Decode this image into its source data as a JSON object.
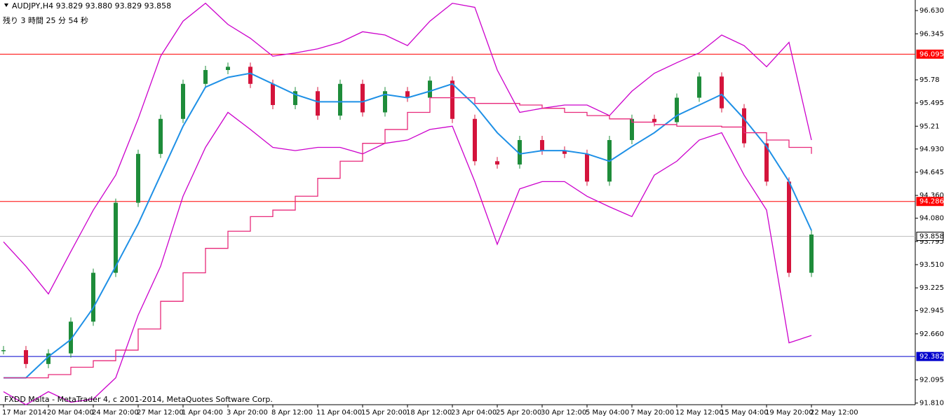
{
  "chart_data": {
    "type": "candlestick",
    "title": "AUDJPY,H4  93.829 93.880 93.829 93.858",
    "countdown": "残り 3 時間 25 分 54 秒",
    "copyright": "FXDD Malta - MetaTrader 4, c 2001-2014, MetaQuotes Software Corp.",
    "categories": [
      "17 Mar 2014",
      null,
      "20 Mar 04:00",
      null,
      "24 Mar 20:00",
      null,
      "27 Mar 12:00",
      null,
      "1 Apr 04:00",
      null,
      "3 Apr 20:00",
      null,
      "8 Apr 12:00",
      null,
      "11 Apr 04:00",
      null,
      "15 Apr 20:00",
      null,
      "18 Apr 12:00",
      null,
      "23 Apr 04:00",
      null,
      "25 Apr 20:00",
      null,
      "30 Apr 12:00",
      null,
      "5 May 04:00",
      null,
      "7 May 20:00",
      null,
      "12 May 12:00",
      null,
      "15 May 04:00",
      null,
      "19 May 20:00",
      null,
      "22 May 12:00"
    ],
    "up_color": "#1e8c3a",
    "down_color": "#d4143c",
    "series": [
      {
        "name": "price",
        "color": "#000000",
        "values": [
          92.46,
          92.29,
          92.42,
          92.81,
          93.41,
          94.27,
          94.87,
          95.3,
          95.73,
          95.9,
          95.94,
          95.73,
          95.47,
          95.64,
          95.34,
          95.73,
          95.38,
          95.64,
          95.56,
          95.77,
          95.3,
          94.78,
          94.74,
          95.04,
          94.91,
          94.87,
          94.53,
          95.04,
          95.3,
          95.26,
          95.56,
          95.82,
          95.43,
          95.0,
          94.53,
          93.41,
          93.88
        ]
      },
      {
        "name": "ma",
        "color": "#1e90e6",
        "values": [
          92.12,
          92.12,
          92.38,
          92.59,
          92.98,
          93.49,
          94.01,
          94.61,
          95.21,
          95.69,
          95.81,
          95.86,
          95.73,
          95.6,
          95.51,
          95.51,
          95.51,
          95.6,
          95.56,
          95.64,
          95.73,
          95.47,
          95.13,
          94.87,
          94.91,
          94.91,
          94.87,
          94.78,
          94.96,
          95.13,
          95.34,
          95.47,
          95.6,
          95.3,
          94.96,
          94.53,
          93.93
        ]
      },
      {
        "name": "upper",
        "color": "#cc00cc",
        "values": [
          93.79,
          93.49,
          93.15,
          93.67,
          94.18,
          94.61,
          95.3,
          96.07,
          96.5,
          96.72,
          96.46,
          96.29,
          96.07,
          96.11,
          96.16,
          96.24,
          96.37,
          96.33,
          96.2,
          96.5,
          96.72,
          96.67,
          95.9,
          95.38,
          95.43,
          95.47,
          95.47,
          95.34,
          95.64,
          95.86,
          95.99,
          96.11,
          96.33,
          96.2,
          95.94,
          96.24,
          95.04
        ]
      },
      {
        "name": "lower",
        "color": "#cc00cc",
        "values": [
          91.95,
          91.79,
          91.95,
          91.82,
          91.86,
          92.12,
          92.89,
          93.49,
          94.35,
          94.95,
          95.38,
          95.17,
          94.95,
          94.91,
          94.95,
          94.95,
          94.87,
          95.0,
          95.04,
          95.17,
          95.21,
          94.53,
          93.76,
          94.44,
          94.53,
          94.53,
          94.35,
          94.22,
          94.1,
          94.61,
          94.78,
          95.04,
          95.13,
          94.61,
          94.18,
          92.55,
          92.64
        ]
      },
      {
        "name": "step",
        "color": "#e8297a",
        "values": [
          92.12,
          92.12,
          92.16,
          92.25,
          92.33,
          92.46,
          92.72,
          93.06,
          93.41,
          93.71,
          93.92,
          94.1,
          94.18,
          94.35,
          94.57,
          94.78,
          95.0,
          95.17,
          95.38,
          95.56,
          95.56,
          95.49,
          95.49,
          95.47,
          95.43,
          95.38,
          95.34,
          95.3,
          95.26,
          95.23,
          95.21,
          95.21,
          95.2,
          95.13,
          95.04,
          94.95,
          94.87
        ]
      }
    ],
    "levels": [
      {
        "value": 96.095,
        "color": "#ff0000"
      },
      {
        "value": 94.286,
        "color": "#ff0000"
      },
      {
        "value": 93.858,
        "color": "#c0c0c0"
      },
      {
        "value": 92.382,
        "color": "#0000cc"
      }
    ],
    "ylim": [
      91.79,
      96.76
    ],
    "yticks": [
      {
        "value": 96.63,
        "label": "96.630"
      },
      96.345,
      95.78,
      95.495,
      95.21,
      {
        "value": 94.93,
        "label": "94.930"
      },
      94.645,
      {
        "value": 94.36,
        "label": "94.360"
      },
      {
        "value": 94.08,
        "label": "94.080"
      },
      93.795,
      {
        "value": 93.51,
        "label": "93.510"
      },
      93.225,
      92.945,
      {
        "value": 92.66,
        "label": "92.660"
      },
      92.095,
      {
        "value": 91.81,
        "label": "91.810"
      }
    ]
  }
}
